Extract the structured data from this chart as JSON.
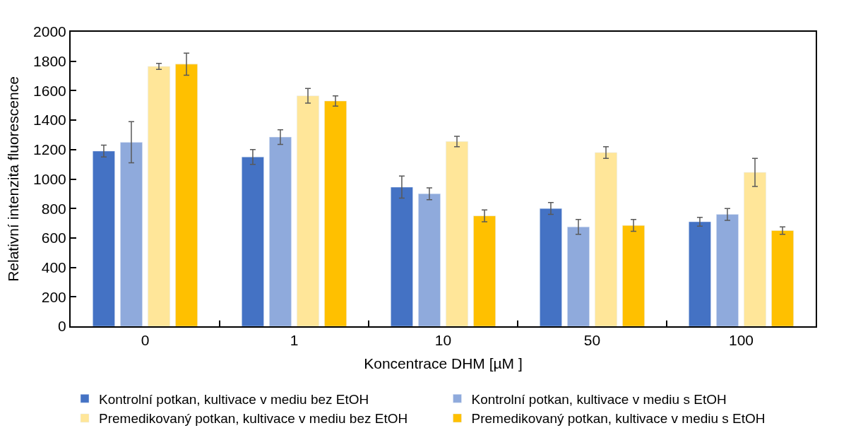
{
  "chart_data": {
    "type": "bar",
    "xlabel": "Koncentrace DHM [µM ]",
    "ylabel": "Relativní intenzita fluorescence",
    "categories": [
      "0",
      "1",
      "10",
      "50",
      "100"
    ],
    "series": [
      {
        "name": "Kontrolní potkan, kultivace v mediu bez EtOH",
        "color": "#4472c4",
        "values": [
          1190,
          1150,
          945,
          800,
          710
        ],
        "errors": [
          40,
          50,
          75,
          40,
          30
        ]
      },
      {
        "name": "Kontrolní potkan, kultivace v mediu s EtOH",
        "color": "#8faadc",
        "values": [
          1250,
          1285,
          900,
          675,
          760
        ],
        "errors": [
          140,
          50,
          40,
          50,
          40
        ]
      },
      {
        "name": "Premedikovaný potkan, kultivace v mediu bez EtOH",
        "color": "#ffe699",
        "values": [
          1765,
          1565,
          1255,
          1180,
          1045
        ],
        "errors": [
          20,
          50,
          35,
          40,
          95
        ]
      },
      {
        "name": "Premedikovaný potkan, kultivace v mediu s EtOH",
        "color": "#ffc000",
        "values": [
          1780,
          1530,
          750,
          685,
          650
        ],
        "errors": [
          75,
          35,
          40,
          40,
          25
        ]
      }
    ],
    "ylim": [
      0,
      2000
    ],
    "yticks": [
      0,
      200,
      400,
      600,
      800,
      1000,
      1200,
      1400,
      1600,
      1800,
      2000
    ],
    "legend": "bottom"
  }
}
